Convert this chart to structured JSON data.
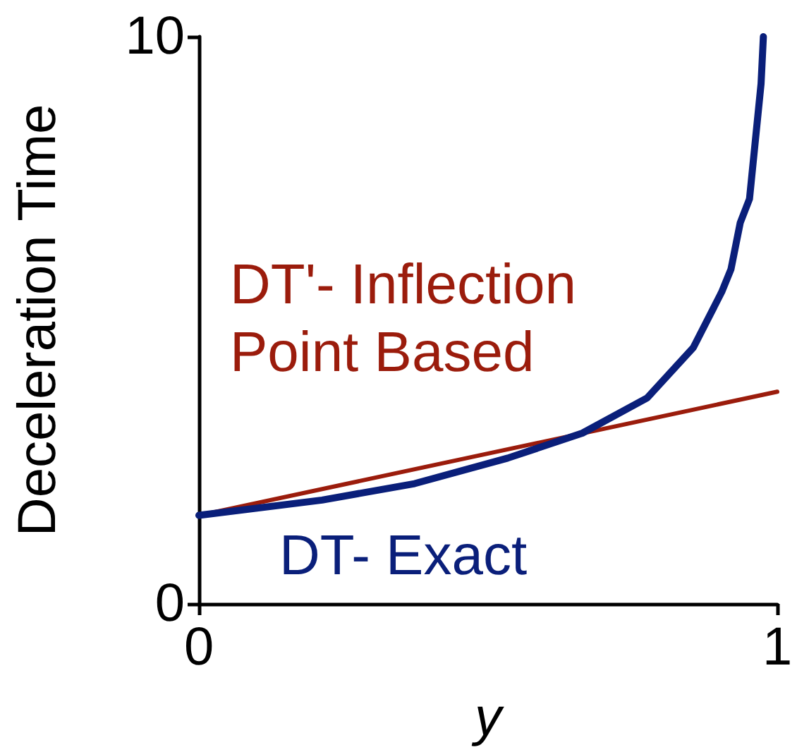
{
  "chart_data": {
    "type": "line",
    "xlabel": "y",
    "ylabel": "Deceleration Time",
    "xlim": [
      0,
      1
    ],
    "ylim": [
      0,
      10
    ],
    "xticks": [
      0,
      1
    ],
    "yticks": [
      0,
      10
    ],
    "grid": false,
    "legend": false,
    "marker": "none",
    "line_style": "solid",
    "series": [
      {
        "name": "DT'- Inflection Point Based",
        "color": "#9b1c0c",
        "x": [
          0,
          1
        ],
        "values": [
          1.56,
          3.74
        ]
      },
      {
        "name": "DT- Exact",
        "color": "#0a1f7a",
        "x": [
          0,
          0.213,
          0.373,
          0.534,
          0.663,
          0.775,
          0.855,
          0.904,
          0.92,
          0.936,
          0.952,
          0.96,
          0.972,
          0.976
        ],
        "values": [
          1.56,
          1.83,
          2.12,
          2.57,
          3.01,
          3.63,
          4.52,
          5.5,
          5.9,
          6.72,
          7.14,
          7.95,
          9.17,
          10.0
        ]
      }
    ]
  }
}
